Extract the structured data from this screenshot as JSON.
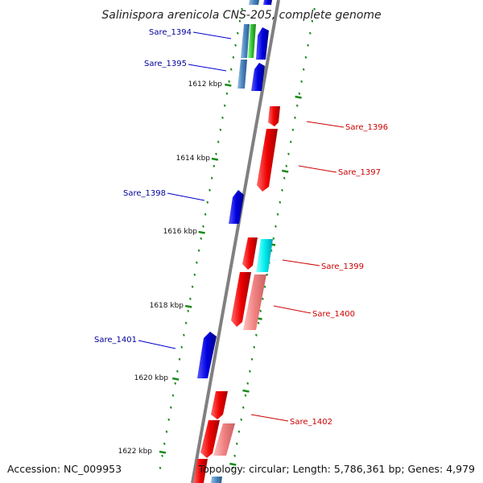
{
  "title": "Salinispora arenicola CNS-205, complete genome",
  "accession": "Accession: NC_009953",
  "topology": "Topology: circular; Length: 5,786,361 bp; Genes: 4,979",
  "colors": {
    "forward": "#e8000a",
    "reverse": "#0a0ad8",
    "backbone": "#808080",
    "ticks": "#1a8a1a",
    "forward_label": "#cc0000",
    "reverse_label": "#00009c"
  },
  "scale_labels": [
    "1612 kbp",
    "1614 kbp",
    "1616 kbp",
    "1618 kbp",
    "1620 kbp",
    "1622 kbp"
  ],
  "genes": [
    {
      "name": "Sare_1394",
      "strand": "reverse"
    },
    {
      "name": "Sare_1395",
      "strand": "reverse"
    },
    {
      "name": "Sare_1396",
      "strand": "forward"
    },
    {
      "name": "Sare_1397",
      "strand": "forward"
    },
    {
      "name": "Sare_1398",
      "strand": "reverse"
    },
    {
      "name": "Sare_1399",
      "strand": "forward"
    },
    {
      "name": "Sare_1400",
      "strand": "forward"
    },
    {
      "name": "Sare_1401",
      "strand": "reverse"
    },
    {
      "name": "Sare_1402",
      "strand": "forward"
    }
  ]
}
